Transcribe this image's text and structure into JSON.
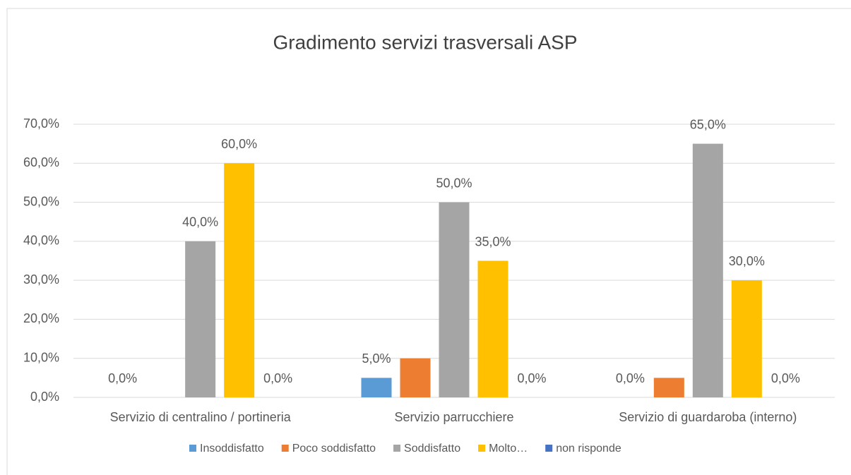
{
  "chart_data": {
    "type": "bar",
    "title": "Gradimento servizi trasversali ASP",
    "categories": [
      "Servizio di centralino / portineria",
      "Servizio parrucchiere",
      "Servizio di guardaroba (interno)"
    ],
    "series": [
      {
        "name": "Insoddisfatto",
        "color": "#5b9bd5",
        "values": [
          0,
          5,
          0
        ],
        "value_labels": [
          "0,0%",
          "5,0%",
          "0,0%"
        ]
      },
      {
        "name": "Poco soddisfatto",
        "color": "#ed7d31",
        "values": [
          0,
          10,
          5
        ]
      },
      {
        "name": "Soddisfatto",
        "color": "#a5a5a5",
        "values": [
          40,
          50,
          65
        ],
        "value_labels": [
          "40,0%",
          "50,0%",
          "65,0%"
        ]
      },
      {
        "name": "Molto…",
        "color": "#ffc000",
        "values": [
          60,
          35,
          30
        ],
        "value_labels": [
          "60,0%",
          "35,0%",
          "30,0%"
        ]
      },
      {
        "name": "non risponde",
        "color": "#4472c4",
        "values": [
          0,
          0,
          0
        ],
        "value_labels": [
          "0,0%",
          "0,0%",
          "0,0%"
        ]
      }
    ],
    "ylim": [
      0,
      70
    ],
    "yticks": [
      {
        "value": 0,
        "label": "0,0%"
      },
      {
        "value": 10,
        "label": "10,0%"
      },
      {
        "value": 20,
        "label": "20,0%"
      },
      {
        "value": 30,
        "label": "30,0%"
      },
      {
        "value": 40,
        "label": "40,0%"
      },
      {
        "value": 50,
        "label": "50,0%"
      },
      {
        "value": 60,
        "label": "60,0%"
      },
      {
        "value": 70,
        "label": "70,0%"
      }
    ],
    "grid": true,
    "legend": "bottom"
  }
}
